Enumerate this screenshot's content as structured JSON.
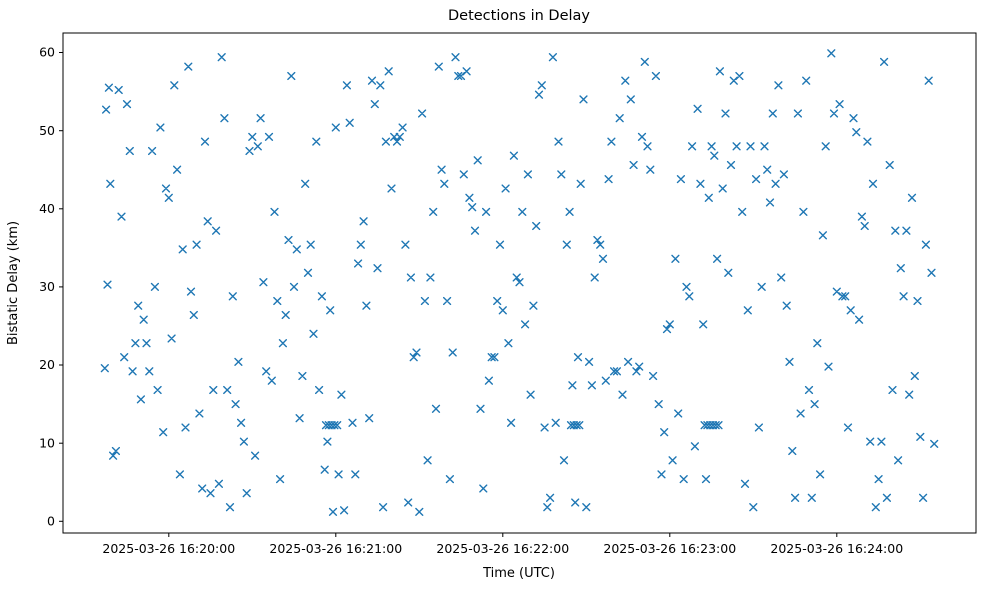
{
  "chart_data": {
    "type": "scatter",
    "title": "Detections in Delay",
    "xlabel": "Time (UTC)",
    "ylabel": "Bistatic Delay (km)",
    "marker": "x",
    "marker_color": "#1f77b4",
    "grid": false,
    "legend": "none",
    "x_encoding": "seconds since 2025-03-26 16:19:00 UTC",
    "xlim": [
      22,
      350
    ],
    "ylim": [
      -1.5,
      62.5
    ],
    "y_ticks": [
      0,
      10,
      20,
      30,
      40,
      50,
      60
    ],
    "x_ticks": [
      {
        "value": 60,
        "label": "2025-03-26 16:20:00"
      },
      {
        "value": 120,
        "label": "2025-03-26 16:21:00"
      },
      {
        "value": 180,
        "label": "2025-03-26 16:22:00"
      },
      {
        "value": 240,
        "label": "2025-03-26 16:23:00"
      },
      {
        "value": 300,
        "label": "2025-03-26 16:24:00"
      }
    ],
    "points": [
      [
        37,
        19.6
      ],
      [
        37.5,
        52.7
      ],
      [
        38,
        30.3
      ],
      [
        38.5,
        55.5
      ],
      [
        39,
        43.2
      ],
      [
        40,
        8.4
      ],
      [
        41,
        9.0
      ],
      [
        42,
        55.2
      ],
      [
        43,
        39.0
      ],
      [
        44,
        21.0
      ],
      [
        45,
        53.4
      ],
      [
        46,
        47.4
      ],
      [
        47,
        19.2
      ],
      [
        48,
        22.8
      ],
      [
        49,
        27.6
      ],
      [
        50,
        15.6
      ],
      [
        51,
        25.8
      ],
      [
        52,
        22.8
      ],
      [
        53,
        19.2
      ],
      [
        54,
        47.4
      ],
      [
        55,
        30.0
      ],
      [
        56,
        16.8
      ],
      [
        57,
        50.4
      ],
      [
        58,
        11.4
      ],
      [
        59,
        42.6
      ],
      [
        60,
        41.4
      ],
      [
        61,
        23.4
      ],
      [
        62,
        55.8
      ],
      [
        63,
        45.0
      ],
      [
        64,
        6.0
      ],
      [
        65,
        34.8
      ],
      [
        66,
        12.0
      ],
      [
        67,
        58.2
      ],
      [
        68,
        29.4
      ],
      [
        69,
        26.4
      ],
      [
        70,
        35.4
      ],
      [
        71,
        13.8
      ],
      [
        72,
        4.2
      ],
      [
        73,
        48.6
      ],
      [
        74,
        38.4
      ],
      [
        75,
        3.6
      ],
      [
        76,
        16.8
      ],
      [
        77,
        37.2
      ],
      [
        78,
        4.8
      ],
      [
        79,
        59.4
      ],
      [
        80,
        51.6
      ],
      [
        81,
        16.8
      ],
      [
        82,
        1.8
      ],
      [
        83,
        28.8
      ],
      [
        84,
        15.0
      ],
      [
        85,
        20.4
      ],
      [
        86,
        12.6
      ],
      [
        87,
        10.2
      ],
      [
        88,
        3.6
      ],
      [
        89,
        47.4
      ],
      [
        90,
        49.2
      ],
      [
        91,
        8.4
      ],
      [
        92,
        48.0
      ],
      [
        93,
        51.6
      ],
      [
        94,
        30.6
      ],
      [
        95,
        19.2
      ],
      [
        96,
        49.2
      ],
      [
        97,
        18.0
      ],
      [
        98,
        39.6
      ],
      [
        99,
        28.2
      ],
      [
        100,
        5.4
      ],
      [
        101,
        22.8
      ],
      [
        102,
        26.4
      ],
      [
        103,
        36.0
      ],
      [
        104,
        57.0
      ],
      [
        105,
        30.0
      ],
      [
        106,
        34.8
      ],
      [
        107,
        13.2
      ],
      [
        108,
        18.6
      ],
      [
        109,
        43.2
      ],
      [
        110,
        31.8
      ],
      [
        111,
        35.4
      ],
      [
        112,
        24.0
      ],
      [
        113,
        48.6
      ],
      [
        114,
        16.8
      ],
      [
        115,
        28.8
      ],
      [
        116,
        6.6
      ],
      [
        117,
        10.2
      ],
      [
        118,
        27.0
      ],
      [
        119,
        1.2
      ],
      [
        120,
        50.4
      ],
      [
        121,
        6.0
      ],
      [
        122,
        16.2
      ],
      [
        123,
        1.4
      ],
      [
        124,
        55.8
      ],
      [
        125,
        51.0
      ],
      [
        126,
        12.6
      ],
      [
        127,
        6.0
      ],
      [
        128,
        33.0
      ],
      [
        129,
        35.4
      ],
      [
        130,
        38.4
      ],
      [
        131,
        27.6
      ],
      [
        132,
        13.2
      ],
      [
        133,
        56.4
      ],
      [
        134,
        53.4
      ],
      [
        135,
        32.4
      ],
      [
        136,
        55.8
      ],
      [
        137,
        1.8
      ],
      [
        138,
        48.6
      ],
      [
        139,
        57.6
      ],
      [
        140,
        42.6
      ],
      [
        141,
        49.2
      ],
      [
        142,
        48.6
      ],
      [
        143,
        49.2
      ],
      [
        144,
        50.4
      ],
      [
        145,
        35.4
      ],
      [
        146,
        2.4
      ],
      [
        147,
        31.2
      ],
      [
        148,
        21.0
      ],
      [
        149,
        21.6
      ],
      [
        150,
        1.2
      ],
      [
        151,
        52.2
      ],
      [
        152,
        28.2
      ],
      [
        153,
        7.8
      ],
      [
        154,
        31.2
      ],
      [
        155,
        39.6
      ],
      [
        156,
        14.4
      ],
      [
        157,
        58.2
      ],
      [
        158,
        45.0
      ],
      [
        159,
        43.2
      ],
      [
        160,
        28.2
      ],
      [
        161,
        5.4
      ],
      [
        162,
        21.6
      ],
      [
        163,
        59.4
      ],
      [
        164,
        57.0
      ],
      [
        165,
        57.0
      ],
      [
        166,
        44.4
      ],
      [
        167,
        57.6
      ],
      [
        168,
        41.4
      ],
      [
        169,
        40.2
      ],
      [
        170,
        37.2
      ],
      [
        171,
        46.2
      ],
      [
        172,
        14.4
      ],
      [
        173,
        4.2
      ],
      [
        174,
        39.6
      ],
      [
        175,
        18.0
      ],
      [
        176,
        21.0
      ],
      [
        177,
        21.0
      ],
      [
        178,
        28.2
      ],
      [
        179,
        35.4
      ],
      [
        180,
        27.0
      ],
      [
        181,
        42.6
      ],
      [
        182,
        22.8
      ],
      [
        183,
        12.6
      ],
      [
        184,
        46.8
      ],
      [
        185,
        31.2
      ],
      [
        186,
        30.6
      ],
      [
        187,
        39.6
      ],
      [
        188,
        25.2
      ],
      [
        189,
        44.4
      ],
      [
        190,
        16.2
      ],
      [
        191,
        27.6
      ],
      [
        192,
        37.8
      ],
      [
        193,
        54.6
      ],
      [
        194,
        55.8
      ],
      [
        195,
        12.0
      ],
      [
        196,
        1.8
      ],
      [
        197,
        3.0
      ],
      [
        198,
        59.4
      ],
      [
        199,
        12.6
      ],
      [
        200,
        48.6
      ],
      [
        201,
        44.4
      ],
      [
        202,
        7.8
      ],
      [
        203,
        35.4
      ],
      [
        204,
        39.6
      ],
      [
        205,
        17.4
      ],
      [
        206,
        2.4
      ],
      [
        207,
        21.0
      ],
      [
        208,
        43.2
      ],
      [
        209,
        54.0
      ],
      [
        210,
        1.8
      ],
      [
        211,
        20.4
      ],
      [
        212,
        17.4
      ],
      [
        213,
        31.2
      ],
      [
        214,
        36.0
      ],
      [
        215,
        35.4
      ],
      [
        216,
        33.6
      ],
      [
        217,
        18.0
      ],
      [
        218,
        43.8
      ],
      [
        219,
        48.6
      ],
      [
        220,
        19.2
      ],
      [
        221,
        19.2
      ],
      [
        222,
        51.6
      ],
      [
        223,
        16.2
      ],
      [
        224,
        56.4
      ],
      [
        225,
        20.4
      ],
      [
        226,
        54.0
      ],
      [
        227,
        45.6
      ],
      [
        228,
        19.2
      ],
      [
        229,
        19.8
      ],
      [
        230,
        49.2
      ],
      [
        231,
        58.8
      ],
      [
        232,
        48.0
      ],
      [
        233,
        45.0
      ],
      [
        234,
        18.6
      ],
      [
        235,
        57.0
      ],
      [
        236,
        15.0
      ],
      [
        237,
        6.0
      ],
      [
        238,
        11.4
      ],
      [
        239,
        24.6
      ],
      [
        240,
        25.2
      ],
      [
        241,
        7.8
      ],
      [
        242,
        33.6
      ],
      [
        243,
        13.8
      ],
      [
        244,
        43.8
      ],
      [
        245,
        5.4
      ],
      [
        246,
        30.0
      ],
      [
        247,
        28.8
      ],
      [
        248,
        48.0
      ],
      [
        249,
        9.6
      ],
      [
        250,
        52.8
      ],
      [
        251,
        43.2
      ],
      [
        252,
        25.2
      ],
      [
        253,
        5.4
      ],
      [
        254,
        41.4
      ],
      [
        255,
        48.0
      ],
      [
        256,
        46.8
      ],
      [
        257,
        33.6
      ],
      [
        258,
        57.6
      ],
      [
        259,
        42.6
      ],
      [
        260,
        52.2
      ],
      [
        261,
        31.8
      ],
      [
        262,
        45.6
      ],
      [
        263,
        56.4
      ],
      [
        264,
        48.0
      ],
      [
        265,
        57.0
      ],
      [
        266,
        39.6
      ],
      [
        267,
        4.8
      ],
      [
        268,
        27.0
      ],
      [
        269,
        48.0
      ],
      [
        270,
        1.8
      ],
      [
        271,
        43.8
      ],
      [
        272,
        12.0
      ],
      [
        273,
        30.0
      ],
      [
        274,
        48.0
      ],
      [
        275,
        45.0
      ],
      [
        276,
        40.8
      ],
      [
        277,
        52.2
      ],
      [
        278,
        43.2
      ],
      [
        279,
        55.8
      ],
      [
        280,
        31.2
      ],
      [
        281,
        44.4
      ],
      [
        282,
        27.6
      ],
      [
        283,
        20.4
      ],
      [
        284,
        9.0
      ],
      [
        285,
        3.0
      ],
      [
        286,
        52.2
      ],
      [
        287,
        13.8
      ],
      [
        288,
        39.6
      ],
      [
        289,
        56.4
      ],
      [
        290,
        16.8
      ],
      [
        291,
        3.0
      ],
      [
        292,
        15.0
      ],
      [
        293,
        22.8
      ],
      [
        294,
        6.0
      ],
      [
        295,
        36.6
      ],
      [
        296,
        48.0
      ],
      [
        297,
        19.8
      ],
      [
        298,
        59.9
      ],
      [
        299,
        52.2
      ],
      [
        300,
        29.4
      ],
      [
        301,
        53.4
      ],
      [
        302,
        28.8
      ],
      [
        303,
        28.8
      ],
      [
        304,
        12.0
      ],
      [
        305,
        27.0
      ],
      [
        306,
        51.6
      ],
      [
        307,
        49.8
      ],
      [
        308,
        25.8
      ],
      [
        309,
        39.0
      ],
      [
        310,
        37.8
      ],
      [
        311,
        48.6
      ],
      [
        312,
        10.2
      ],
      [
        313,
        43.2
      ],
      [
        314,
        1.8
      ],
      [
        315,
        5.4
      ],
      [
        316,
        10.2
      ],
      [
        317,
        58.8
      ],
      [
        318,
        3.0
      ],
      [
        319,
        45.6
      ],
      [
        320,
        16.8
      ],
      [
        321,
        37.2
      ],
      [
        322,
        7.8
      ],
      [
        323,
        32.4
      ],
      [
        324,
        28.8
      ],
      [
        325,
        37.2
      ],
      [
        326,
        16.2
      ],
      [
        327,
        41.4
      ],
      [
        328,
        18.6
      ],
      [
        329,
        28.2
      ],
      [
        330,
        10.8
      ],
      [
        331,
        3.0
      ],
      [
        332,
        35.4
      ],
      [
        333,
        56.4
      ],
      [
        334,
        31.8
      ],
      [
        335,
        9.9
      ],
      [
        116.5,
        12.3
      ],
      [
        117.5,
        12.3
      ],
      [
        118.5,
        12.3
      ],
      [
        119.5,
        12.3
      ],
      [
        120.5,
        12.3
      ],
      [
        204.5,
        12.3
      ],
      [
        205.5,
        12.3
      ],
      [
        206.5,
        12.3
      ],
      [
        207.5,
        12.3
      ],
      [
        252.5,
        12.3
      ],
      [
        253.5,
        12.3
      ],
      [
        254.5,
        12.3
      ],
      [
        255.5,
        12.3
      ],
      [
        256.5,
        12.3
      ],
      [
        257.5,
        12.3
      ]
    ]
  }
}
